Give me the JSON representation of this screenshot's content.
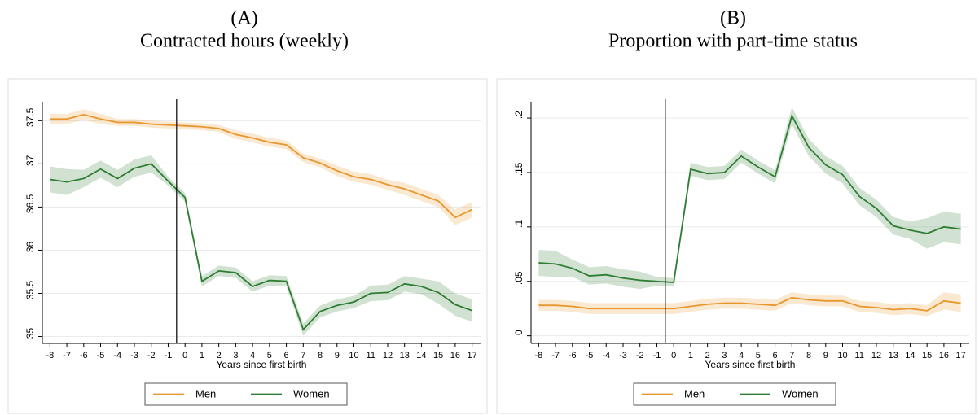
{
  "chart_data": [
    {
      "type": "line",
      "title_label": "(A)",
      "title": "Contracted hours (weekly)",
      "xlabel": "Years since first birth",
      "x": [
        -8,
        -7,
        -6,
        -5,
        -4,
        -3,
        -2,
        -1,
        0,
        1,
        2,
        3,
        4,
        5,
        6,
        7,
        8,
        9,
        10,
        11,
        12,
        13,
        14,
        15,
        16,
        17
      ],
      "xticks": [
        -8,
        -7,
        -6,
        -5,
        -4,
        -3,
        -2,
        -1,
        0,
        1,
        2,
        3,
        4,
        5,
        6,
        7,
        8,
        9,
        10,
        11,
        12,
        13,
        14,
        15,
        16,
        17
      ],
      "xlim": [
        -8.45,
        17.5
      ],
      "ylim": [
        34.92,
        37.72
      ],
      "yticks": [
        35,
        35.5,
        36,
        36.5,
        37,
        37.5
      ],
      "vline": -0.5,
      "grid": true,
      "legend": "bottom",
      "series": [
        {
          "name": "Men",
          "color": "#e8962e",
          "values": [
            37.52,
            37.52,
            37.57,
            37.52,
            37.48,
            37.48,
            37.46,
            37.45,
            37.44,
            37.43,
            37.41,
            37.34,
            37.3,
            37.25,
            37.22,
            37.07,
            37.01,
            36.92,
            36.85,
            36.82,
            36.76,
            36.71,
            36.64,
            36.57,
            36.38,
            36.47
          ],
          "lower": [
            37.46,
            37.46,
            37.51,
            37.46,
            37.44,
            37.44,
            37.42,
            37.41,
            37.4,
            37.39,
            37.37,
            37.29,
            37.25,
            37.2,
            37.17,
            37.02,
            36.96,
            36.86,
            36.79,
            36.76,
            36.7,
            36.64,
            36.57,
            36.5,
            36.29,
            36.38
          ],
          "upper": [
            37.58,
            37.58,
            37.63,
            37.58,
            37.52,
            37.52,
            37.5,
            37.49,
            37.48,
            37.47,
            37.45,
            37.39,
            37.35,
            37.3,
            37.27,
            37.12,
            37.06,
            36.98,
            36.91,
            36.88,
            36.82,
            36.78,
            36.71,
            36.64,
            36.47,
            36.56
          ]
        },
        {
          "name": "Women",
          "color": "#2e7d32",
          "values": [
            36.82,
            36.79,
            36.83,
            36.94,
            36.83,
            36.95,
            37.0,
            36.8,
            36.61,
            35.64,
            35.76,
            35.74,
            35.58,
            35.65,
            35.64,
            35.08,
            35.29,
            35.36,
            35.4,
            35.5,
            35.51,
            35.61,
            35.58,
            35.51,
            35.37,
            35.3
          ],
          "lower": [
            36.67,
            36.64,
            36.73,
            36.84,
            36.73,
            36.85,
            36.9,
            36.75,
            36.56,
            35.58,
            35.7,
            35.68,
            35.52,
            35.59,
            35.58,
            35.01,
            35.22,
            35.29,
            35.33,
            35.41,
            35.42,
            35.52,
            35.49,
            35.38,
            35.24,
            35.17
          ],
          "upper": [
            36.97,
            36.94,
            36.93,
            37.04,
            36.93,
            37.05,
            37.1,
            36.85,
            36.66,
            35.7,
            35.82,
            35.8,
            35.64,
            35.71,
            35.7,
            35.15,
            35.36,
            35.43,
            35.47,
            35.59,
            35.6,
            35.7,
            35.67,
            35.64,
            35.5,
            35.43
          ]
        }
      ]
    },
    {
      "type": "line",
      "title_label": "(B)",
      "title": "Proportion with part-time status",
      "xlabel": "Years since first birth",
      "x": [
        -8,
        -7,
        -6,
        -5,
        -4,
        -3,
        -2,
        -1,
        0,
        1,
        2,
        3,
        4,
        5,
        6,
        7,
        8,
        9,
        10,
        11,
        12,
        13,
        14,
        15,
        16,
        17
      ],
      "xticks": [
        -8,
        -7,
        -6,
        -5,
        -4,
        -3,
        -2,
        -1,
        0,
        1,
        2,
        3,
        4,
        5,
        6,
        7,
        8,
        9,
        10,
        11,
        12,
        13,
        14,
        15,
        16,
        17
      ],
      "xlim": [
        -8.45,
        17.5
      ],
      "ylim": [
        -0.007,
        0.215
      ],
      "yticks": [
        0,
        {
          "value": 0.05,
          "label": ".05"
        },
        {
          "value": 0.1,
          "label": ".1"
        },
        {
          "value": 0.15,
          "label": ".15"
        },
        {
          "value": 0.2,
          "label": ".2"
        }
      ],
      "vline": -0.5,
      "grid": true,
      "legend": "bottom",
      "series": [
        {
          "name": "Men",
          "color": "#e8962e",
          "values": [
            0.028,
            0.028,
            0.027,
            0.025,
            0.025,
            0.025,
            0.025,
            0.025,
            0.025,
            0.027,
            0.029,
            0.03,
            0.03,
            0.029,
            0.028,
            0.035,
            0.033,
            0.032,
            0.032,
            0.027,
            0.026,
            0.024,
            0.025,
            0.023,
            0.032,
            0.03
          ],
          "lower": [
            0.023,
            0.023,
            0.022,
            0.02,
            0.02,
            0.02,
            0.02,
            0.02,
            0.02,
            0.022,
            0.024,
            0.025,
            0.025,
            0.024,
            0.023,
            0.03,
            0.028,
            0.027,
            0.027,
            0.022,
            0.021,
            0.019,
            0.02,
            0.018,
            0.024,
            0.022
          ],
          "upper": [
            0.033,
            0.033,
            0.032,
            0.03,
            0.03,
            0.03,
            0.03,
            0.03,
            0.03,
            0.032,
            0.034,
            0.035,
            0.035,
            0.034,
            0.033,
            0.04,
            0.038,
            0.037,
            0.037,
            0.032,
            0.031,
            0.029,
            0.03,
            0.028,
            0.04,
            0.038
          ]
        },
        {
          "name": "Women",
          "color": "#2e7d32",
          "values": [
            0.067,
            0.066,
            0.062,
            0.055,
            0.056,
            0.053,
            0.051,
            0.05,
            0.049,
            0.153,
            0.149,
            0.15,
            0.165,
            0.155,
            0.146,
            0.202,
            0.173,
            0.157,
            0.148,
            0.128,
            0.117,
            0.101,
            0.097,
            0.094,
            0.1,
            0.098
          ],
          "lower": [
            0.055,
            0.054,
            0.054,
            0.047,
            0.048,
            0.045,
            0.043,
            0.046,
            0.045,
            0.147,
            0.143,
            0.144,
            0.159,
            0.149,
            0.14,
            0.194,
            0.165,
            0.149,
            0.14,
            0.12,
            0.109,
            0.093,
            0.089,
            0.08,
            0.086,
            0.084
          ],
          "upper": [
            0.079,
            0.078,
            0.07,
            0.063,
            0.064,
            0.061,
            0.059,
            0.054,
            0.053,
            0.159,
            0.155,
            0.156,
            0.171,
            0.161,
            0.152,
            0.21,
            0.181,
            0.165,
            0.156,
            0.136,
            0.125,
            0.109,
            0.105,
            0.108,
            0.114,
            0.112
          ]
        }
      ]
    }
  ]
}
